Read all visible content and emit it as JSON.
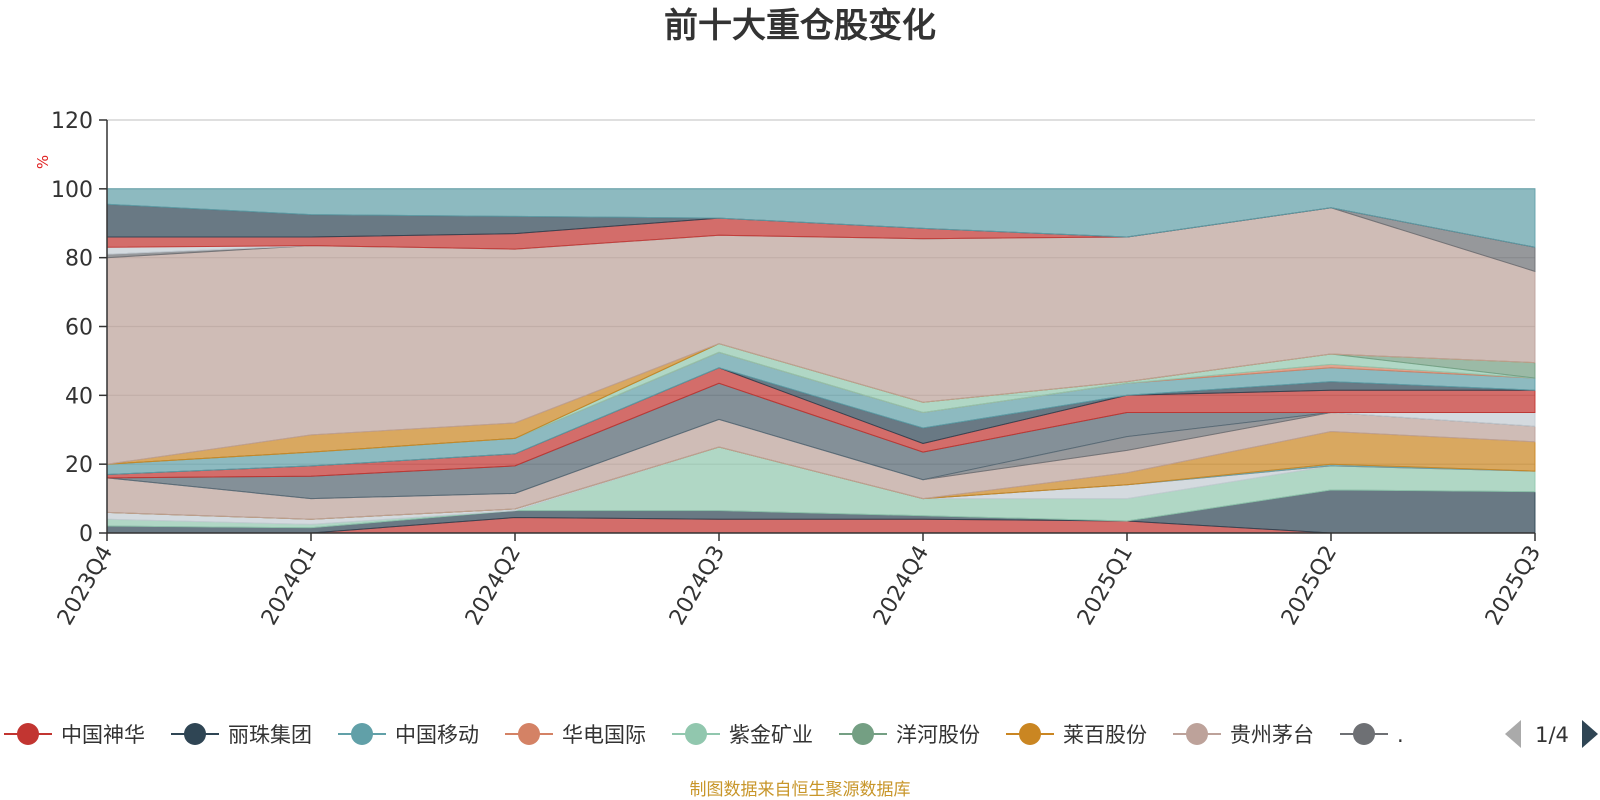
{
  "chart_data": {
    "type": "area",
    "title": "前十大重仓股变化",
    "unit_label": "%",
    "ylim": [
      0,
      120
    ],
    "yticks": [
      "0",
      "20",
      "40",
      "60",
      "80",
      "100",
      "120"
    ],
    "categories": [
      "2023Q4",
      "2024Q1",
      "2024Q2",
      "2024Q3",
      "2024Q4",
      "2025Q1",
      "2025Q2",
      "2025Q3"
    ],
    "layers": [
      {
        "color": "#c23531",
        "lower": [
          0,
          0,
          0,
          0,
          0,
          0,
          0,
          0
        ],
        "upper": [
          0,
          0,
          4.5,
          4,
          4,
          3.5,
          0,
          0
        ]
      },
      {
        "color": "#2f4554",
        "lower": [
          0,
          0,
          4.5,
          4,
          4,
          3.5,
          0,
          0
        ],
        "upper": [
          2,
          1.5,
          6.5,
          6.5,
          5,
          3.5,
          12.5,
          12
        ]
      },
      {
        "color": "#91c7ae",
        "lower": [
          2,
          1.5,
          6.5,
          6.5,
          5,
          3.5,
          12.5,
          12
        ],
        "upper": [
          4,
          2.5,
          6.5,
          25,
          10,
          10,
          19.5,
          18
        ]
      },
      {
        "color": "#c4ccd3",
        "lower": [
          4,
          2.5,
          6.5,
          25,
          10,
          10,
          19.5,
          18
        ],
        "upper": [
          6,
          4,
          7,
          25,
          10,
          14,
          19.5,
          18
        ]
      },
      {
        "color": "#d48265",
        "lower": [
          6,
          4,
          7,
          25,
          10,
          14,
          19.5,
          18
        ],
        "upper": [
          6,
          4,
          7,
          25,
          10,
          14,
          19.5,
          18
        ]
      },
      {
        "color": "#61a0a8",
        "lower": [
          6,
          4,
          7,
          25,
          10,
          14,
          19.5,
          18
        ],
        "upper": [
          6,
          4,
          7,
          25,
          10,
          14,
          20,
          18
        ]
      },
      {
        "color": "#ca8622",
        "lower": [
          6,
          4,
          7,
          25,
          10,
          14,
          20,
          18
        ],
        "upper": [
          6,
          4,
          7,
          25,
          10,
          17.5,
          29.5,
          26.5
        ]
      },
      {
        "color": "#bda29a",
        "lower": [
          6,
          4,
          7,
          25,
          10,
          17.5,
          29.5,
          26.5
        ],
        "upper": [
          16,
          10,
          11.5,
          33,
          15.5,
          24,
          35,
          31
        ]
      },
      {
        "color": "#6e7074",
        "lower": [
          16,
          10,
          11.5,
          33,
          15.5,
          24,
          35,
          31
        ],
        "upper": [
          16,
          10,
          11.5,
          33,
          15.5,
          28,
          35,
          31
        ]
      },
      {
        "color": "#c4ccd3",
        "lower": [
          16,
          10,
          11.5,
          33,
          15.5,
          28,
          35,
          31
        ],
        "upper": [
          16,
          10,
          11.5,
          33,
          15.5,
          28,
          35,
          35
        ]
      },
      {
        "color": "#546570",
        "lower": [
          16,
          10,
          11.5,
          33,
          15.5,
          28,
          35,
          35
        ],
        "upper": [
          16,
          16.5,
          19.5,
          43.5,
          23.5,
          35,
          35,
          35
        ]
      },
      {
        "color": "#c23531",
        "lower": [
          16,
          16.5,
          19.5,
          43.5,
          23.5,
          35,
          35,
          35
        ],
        "upper": [
          17,
          19.5,
          23,
          48,
          26,
          40,
          41.5,
          41.5
        ]
      },
      {
        "color": "#2f4554",
        "lower": [
          17,
          19.5,
          23,
          48,
          26,
          40,
          41.5,
          41.5
        ],
        "upper": [
          17,
          19.5,
          23,
          48,
          30.5,
          40,
          44,
          41.5
        ]
      },
      {
        "color": "#61a0a8",
        "lower": [
          17,
          19.5,
          23,
          48,
          30.5,
          40,
          44,
          41.5
        ],
        "upper": [
          20,
          23.5,
          27.5,
          52.5,
          35,
          43.5,
          48,
          45
        ]
      },
      {
        "color": "#d48265",
        "lower": [
          20,
          23.5,
          27.5,
          52.5,
          35,
          43.5,
          48,
          45
        ],
        "upper": [
          20,
          23.5,
          27.5,
          52.5,
          35,
          43.5,
          49,
          45
        ]
      },
      {
        "color": "#91c7ae",
        "lower": [
          20,
          23.5,
          27.5,
          52.5,
          35,
          43.5,
          49,
          45
        ],
        "upper": [
          20,
          23.5,
          27.5,
          55,
          38,
          44,
          52,
          45
        ]
      },
      {
        "color": "#749f83",
        "lower": [
          20,
          23.5,
          27.5,
          55,
          38,
          44,
          52,
          45
        ],
        "upper": [
          20,
          23.5,
          27.5,
          55,
          38,
          44,
          52,
          49.5
        ]
      },
      {
        "color": "#ca8622",
        "lower": [
          20,
          23.5,
          27.5,
          55,
          38,
          44,
          52,
          49.5
        ],
        "upper": [
          20,
          28.5,
          32,
          55,
          38,
          44,
          52,
          49.5
        ]
      },
      {
        "color": "#bda29a",
        "lower": [
          20,
          28.5,
          32,
          55,
          38,
          44,
          52,
          49.5
        ],
        "upper": [
          80,
          83.5,
          82.5,
          86.5,
          85.5,
          86,
          94.5,
          76
        ]
      },
      {
        "color": "#6e7074",
        "lower": [
          80,
          83.5,
          82.5,
          86.5,
          85.5,
          86,
          94.5,
          76
        ],
        "upper": [
          81,
          83.5,
          82.5,
          86.5,
          85.5,
          86,
          94.5,
          83
        ]
      },
      {
        "color": "#c4ccd3",
        "lower": [
          81,
          83.5,
          82.5,
          86.5,
          85.5,
          86,
          94.5,
          83
        ],
        "upper": [
          83,
          83.5,
          82.5,
          86.5,
          85.5,
          86,
          94.5,
          83
        ]
      },
      {
        "color": "#c23531",
        "lower": [
          83,
          83.5,
          82.5,
          86.5,
          85.5,
          86,
          94.5,
          83
        ],
        "upper": [
          86,
          86,
          87,
          91.5,
          88.5,
          86,
          94.5,
          83
        ]
      },
      {
        "color": "#2f4554",
        "lower": [
          86,
          86,
          87,
          91.5,
          88.5,
          86,
          94.5,
          83
        ],
        "upper": [
          95.5,
          92.5,
          92,
          91.5,
          88.5,
          86,
          94.5,
          83
        ]
      },
      {
        "color": "#61a0a8",
        "lower": [
          95.5,
          92.5,
          92,
          91.5,
          88.5,
          86,
          94.5,
          83
        ],
        "upper": [
          100,
          100,
          100,
          100,
          100,
          100,
          100,
          100
        ]
      }
    ],
    "legend": {
      "position": "bottom",
      "items": [
        {
          "label": "中国神华",
          "color": "#c23531"
        },
        {
          "label": "丽珠集团",
          "color": "#2f4554"
        },
        {
          "label": "中国移动",
          "color": "#61a0a8"
        },
        {
          "label": "华电国际",
          "color": "#d48265"
        },
        {
          "label": "紫金矿业",
          "color": "#91c7ae"
        },
        {
          "label": "洋河股份",
          "color": "#749f83"
        },
        {
          "label": "莱百股份",
          "color": "#ca8622"
        },
        {
          "label": "贵州茅台",
          "color": "#bda29a"
        },
        {
          "label": ".",
          "color": "#6e7074"
        }
      ],
      "page": "1/4"
    },
    "grid": true
  },
  "source": "制图数据来自恒生聚源数据库"
}
